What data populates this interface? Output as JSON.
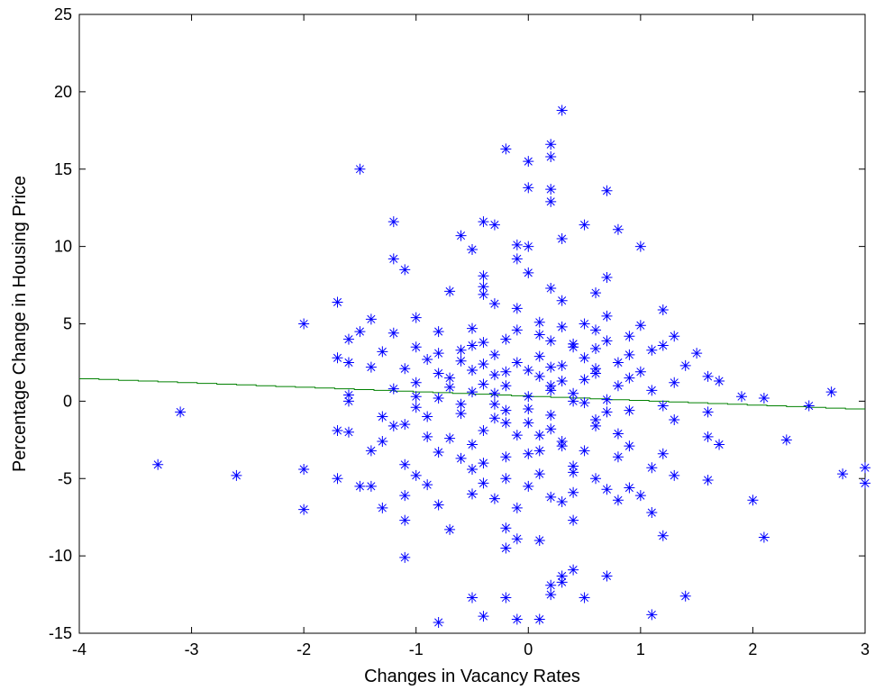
{
  "chart_data": {
    "type": "scatter",
    "title": "",
    "xlabel": "Changes in Vacancy Rates",
    "ylabel": "Percentage Change in Housing Price",
    "xlim": [
      -4,
      3
    ],
    "ylim": [
      -15,
      25
    ],
    "xticks": [
      "-4",
      "-3",
      "-2",
      "-1",
      "0",
      "1",
      "2",
      "3"
    ],
    "yticks": [
      "-15",
      "-10",
      "-5",
      "0",
      "5",
      "10",
      "15",
      "20",
      "25"
    ],
    "grid": false,
    "legend": "none",
    "colors": {
      "points": "#0000ff",
      "fit_line": "#008000",
      "axes": "#000000"
    },
    "series": [
      {
        "kind": "points",
        "marker": "asterisk",
        "points": [
          [
            0.3,
            18.8
          ],
          [
            0.2,
            16.6
          ],
          [
            -0.2,
            16.3
          ],
          [
            0.2,
            15.8
          ],
          [
            0.0,
            15.5
          ],
          [
            -1.5,
            15.0
          ],
          [
            0.0,
            13.8
          ],
          [
            0.2,
            13.7
          ],
          [
            0.7,
            13.6
          ],
          [
            0.2,
            12.9
          ],
          [
            -1.2,
            11.6
          ],
          [
            -0.4,
            11.6
          ],
          [
            -0.3,
            11.4
          ],
          [
            0.5,
            11.4
          ],
          [
            0.8,
            11.1
          ],
          [
            -0.6,
            10.7
          ],
          [
            0.3,
            10.5
          ],
          [
            -0.1,
            10.1
          ],
          [
            0.0,
            10.0
          ],
          [
            1.0,
            10.0
          ],
          [
            -0.5,
            9.8
          ],
          [
            -1.2,
            9.2
          ],
          [
            -0.1,
            9.2
          ],
          [
            -1.1,
            8.5
          ],
          [
            0.0,
            8.3
          ],
          [
            -0.4,
            8.1
          ],
          [
            0.7,
            8.0
          ],
          [
            -0.4,
            7.4
          ],
          [
            0.2,
            7.3
          ],
          [
            -0.7,
            7.1
          ],
          [
            0.6,
            7.0
          ],
          [
            0.3,
            6.5
          ],
          [
            -1.7,
            6.4
          ],
          [
            -0.4,
            6.9
          ],
          [
            -0.3,
            6.3
          ],
          [
            -0.1,
            6.0
          ],
          [
            0.7,
            5.5
          ],
          [
            1.2,
            5.9
          ],
          [
            -1.0,
            5.4
          ],
          [
            -1.4,
            5.3
          ],
          [
            -2.0,
            5.0
          ],
          [
            0.5,
            5.0
          ],
          [
            1.0,
            4.9
          ],
          [
            -1.5,
            4.5
          ],
          [
            -1.2,
            4.4
          ],
          [
            -0.8,
            4.5
          ],
          [
            0.1,
            4.3
          ],
          [
            0.9,
            4.2
          ],
          [
            1.3,
            4.2
          ],
          [
            -1.6,
            4.0
          ],
          [
            -0.4,
            3.8
          ],
          [
            0.4,
            3.7
          ],
          [
            1.2,
            3.6
          ],
          [
            -1.0,
            3.5
          ],
          [
            -0.6,
            3.3
          ],
          [
            0.6,
            3.4
          ],
          [
            -1.3,
            3.2
          ],
          [
            1.5,
            3.1
          ],
          [
            -1.7,
            2.8
          ],
          [
            -0.9,
            2.7
          ],
          [
            0.1,
            2.9
          ],
          [
            0.8,
            2.5
          ],
          [
            -1.6,
            2.5
          ],
          [
            -1.4,
            2.2
          ],
          [
            -1.1,
            2.1
          ],
          [
            0.3,
            2.3
          ],
          [
            1.4,
            2.3
          ],
          [
            -0.2,
            1.9
          ],
          [
            0.6,
            1.8
          ],
          [
            1.6,
            1.6
          ],
          [
            -0.7,
            1.5
          ],
          [
            0.9,
            1.5
          ],
          [
            -1.0,
            1.2
          ],
          [
            -0.4,
            1.1
          ],
          [
            0.2,
            1.0
          ],
          [
            1.3,
            1.2
          ],
          [
            1.7,
            1.3
          ],
          [
            -1.2,
            0.8
          ],
          [
            -0.5,
            0.6
          ],
          [
            0.4,
            0.5
          ],
          [
            1.1,
            0.7
          ],
          [
            -1.6,
            0.4
          ],
          [
            -0.8,
            0.2
          ],
          [
            0.0,
            0.3
          ],
          [
            0.7,
            0.1
          ],
          [
            1.9,
            0.3
          ],
          [
            2.1,
            0.2
          ],
          [
            2.7,
            0.6
          ],
          [
            -1.6,
            0.0
          ],
          [
            -1.0,
            -0.4
          ],
          [
            -0.3,
            -0.2
          ],
          [
            0.5,
            -0.1
          ],
          [
            1.2,
            -0.3
          ],
          [
            2.5,
            -0.3
          ],
          [
            -3.1,
            -0.7
          ],
          [
            -1.3,
            -1.0
          ],
          [
            -0.6,
            -0.8
          ],
          [
            0.2,
            -0.9
          ],
          [
            0.9,
            -0.6
          ],
          [
            1.6,
            -0.7
          ],
          [
            -1.7,
            -1.9
          ],
          [
            -1.1,
            -1.5
          ],
          [
            -0.2,
            -1.4
          ],
          [
            0.6,
            -1.6
          ],
          [
            1.3,
            -1.2
          ],
          [
            -1.6,
            -2.0
          ],
          [
            -0.9,
            -2.3
          ],
          [
            0.1,
            -2.2
          ],
          [
            0.8,
            -2.1
          ],
          [
            1.6,
            -2.3
          ],
          [
            2.3,
            -2.5
          ],
          [
            -1.3,
            -2.6
          ],
          [
            -0.5,
            -2.8
          ],
          [
            0.3,
            -2.9
          ],
          [
            1.7,
            -2.8
          ],
          [
            -1.4,
            -3.2
          ],
          [
            -0.8,
            -3.3
          ],
          [
            0.0,
            -3.4
          ],
          [
            0.8,
            -3.6
          ],
          [
            1.2,
            -3.4
          ],
          [
            -3.3,
            -4.1
          ],
          [
            -2.0,
            -4.4
          ],
          [
            -1.1,
            -4.1
          ],
          [
            -0.4,
            -4.0
          ],
          [
            0.4,
            -4.2
          ],
          [
            1.1,
            -4.3
          ],
          [
            -2.6,
            -4.8
          ],
          [
            -1.0,
            -4.8
          ],
          [
            -0.2,
            -5.0
          ],
          [
            0.6,
            -5.0
          ],
          [
            1.3,
            -4.8
          ],
          [
            1.6,
            -5.1
          ],
          [
            2.8,
            -4.7
          ],
          [
            3.0,
            -4.3
          ],
          [
            -1.7,
            -5.0
          ],
          [
            -1.5,
            -5.5
          ],
          [
            -1.4,
            -5.5
          ],
          [
            -0.9,
            -5.4
          ],
          [
            0.0,
            -5.5
          ],
          [
            0.9,
            -5.6
          ],
          [
            3.0,
            -5.3
          ],
          [
            -1.1,
            -6.1
          ],
          [
            -0.5,
            -6.0
          ],
          [
            0.2,
            -6.2
          ],
          [
            0.7,
            -5.7
          ],
          [
            1.0,
            -6.1
          ],
          [
            -1.3,
            -6.9
          ],
          [
            -0.8,
            -6.7
          ],
          [
            -0.1,
            -6.9
          ],
          [
            0.3,
            -6.5
          ],
          [
            0.8,
            -6.4
          ],
          [
            2.0,
            -6.4
          ],
          [
            -2.0,
            -7.0
          ],
          [
            -1.1,
            -7.7
          ],
          [
            -0.7,
            -8.3
          ],
          [
            -0.2,
            -8.2
          ],
          [
            0.4,
            -7.7
          ],
          [
            1.1,
            -7.2
          ],
          [
            -0.1,
            -8.9
          ],
          [
            0.1,
            -9.0
          ],
          [
            1.2,
            -8.7
          ],
          [
            2.1,
            -8.8
          ],
          [
            -0.2,
            -9.5
          ],
          [
            -1.1,
            -10.1
          ],
          [
            0.4,
            -10.9
          ],
          [
            0.3,
            -11.3
          ],
          [
            0.7,
            -11.3
          ],
          [
            0.2,
            -11.9
          ],
          [
            0.3,
            -11.7
          ],
          [
            -0.5,
            -12.7
          ],
          [
            -0.2,
            -12.7
          ],
          [
            0.2,
            -12.5
          ],
          [
            0.5,
            -12.7
          ],
          [
            1.4,
            -12.6
          ],
          [
            -0.4,
            -13.9
          ],
          [
            -0.1,
            -14.1
          ],
          [
            0.1,
            -14.1
          ],
          [
            1.1,
            -13.8
          ],
          [
            -0.8,
            -14.3
          ],
          [
            -0.5,
            2.0
          ],
          [
            -0.2,
            1.0
          ],
          [
            -0.1,
            2.5
          ],
          [
            0.1,
            1.6
          ],
          [
            0.3,
            1.3
          ],
          [
            -0.3,
            0.5
          ],
          [
            -0.6,
            -0.2
          ],
          [
            0.0,
            -0.5
          ],
          [
            0.2,
            -1.8
          ],
          [
            -0.4,
            -1.9
          ],
          [
            -0.7,
            0.9
          ],
          [
            0.5,
            2.8
          ],
          [
            0.4,
            3.5
          ],
          [
            -0.2,
            4.0
          ],
          [
            -0.5,
            4.7
          ],
          [
            0.1,
            5.1
          ],
          [
            0.6,
            4.6
          ],
          [
            -0.3,
            3.0
          ],
          [
            0.2,
            2.2
          ],
          [
            0.9,
            3.0
          ],
          [
            -0.8,
            1.8
          ],
          [
            -0.9,
            -1.0
          ],
          [
            0.3,
            -2.6
          ],
          [
            -0.2,
            -3.6
          ],
          [
            0.5,
            -3.2
          ],
          [
            -0.6,
            -3.7
          ],
          [
            0.1,
            -4.7
          ],
          [
            -0.4,
            -5.3
          ],
          [
            0.4,
            -5.9
          ],
          [
            -0.3,
            -6.3
          ],
          [
            0.6,
            -1.2
          ],
          [
            1.0,
            1.9
          ],
          [
            -1.0,
            0.3
          ],
          [
            0.7,
            -0.7
          ],
          [
            -0.1,
            4.6
          ],
          [
            0.4,
            0.0
          ],
          [
            -0.6,
            2.6
          ],
          [
            0.2,
            3.9
          ],
          [
            -0.3,
            -1.1
          ],
          [
            0.8,
            1.0
          ],
          [
            -0.7,
            -2.4
          ],
          [
            0.0,
            2.0
          ],
          [
            0.3,
            4.8
          ],
          [
            -0.5,
            3.6
          ],
          [
            0.6,
            2.1
          ],
          [
            -0.2,
            -0.6
          ],
          [
            0.1,
            -3.2
          ],
          [
            -0.8,
            3.1
          ],
          [
            1.1,
            3.3
          ],
          [
            -1.2,
            -1.6
          ],
          [
            0.9,
            -2.9
          ],
          [
            0.5,
            1.4
          ],
          [
            -0.4,
            2.4
          ],
          [
            0.2,
            0.7
          ],
          [
            -0.1,
            -2.2
          ],
          [
            0.4,
            -4.6
          ],
          [
            -0.5,
            -4.4
          ],
          [
            0.7,
            3.9
          ],
          [
            -0.3,
            1.7
          ],
          [
            0.0,
            -1.4
          ]
        ]
      },
      {
        "kind": "fit_line",
        "points": [
          [
            -4,
            1.45
          ],
          [
            3,
            -0.55
          ]
        ]
      }
    ]
  }
}
